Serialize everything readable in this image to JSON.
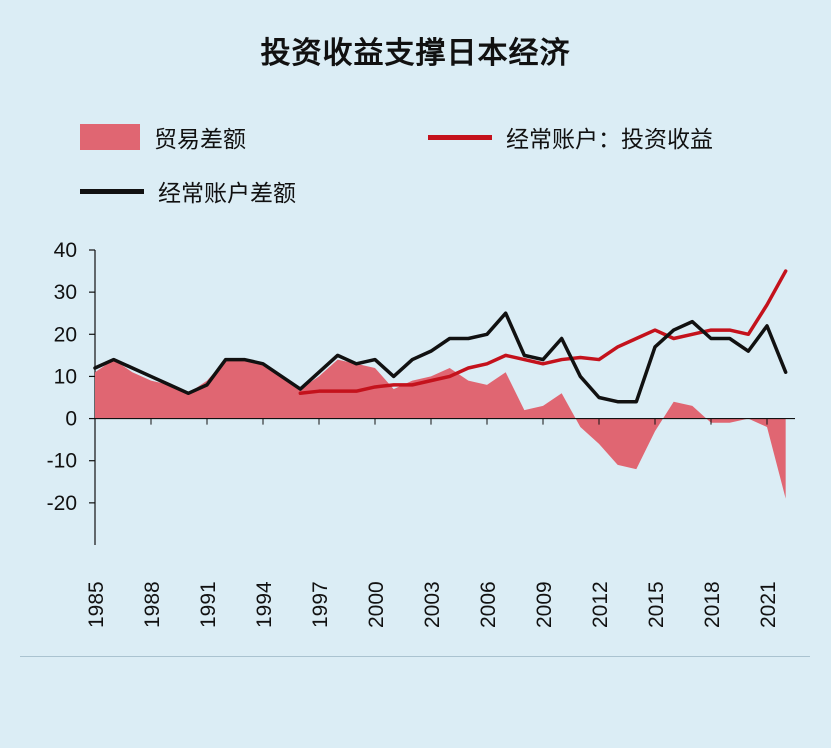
{
  "chart_data": {
    "type": "area",
    "title": "投资收益支撑日本经济",
    "xlabel": "",
    "ylabel": "",
    "ylim": [
      -30,
      40
    ],
    "yticks": [
      40,
      30,
      20,
      10,
      0,
      -10,
      -20
    ],
    "xtick_labels": [
      "1985",
      "1988",
      "1991",
      "1994",
      "1997",
      "2000",
      "2003",
      "2006",
      "2009",
      "2012",
      "2015",
      "2018",
      "2021"
    ],
    "grid": false,
    "legend": "top",
    "series": [
      {
        "name": "贸易差额",
        "kind": "area",
        "color": "#e06672",
        "x": [
          1985,
          1986,
          1987,
          1988,
          1989,
          1990,
          1991,
          1992,
          1993,
          1994,
          1995,
          1996,
          1997,
          1998,
          1999,
          2000,
          2001,
          2002,
          2003,
          2004,
          2005,
          2006,
          2007,
          2008,
          2009,
          2010,
          2011,
          2012,
          2013,
          2014,
          2015,
          2016,
          2017,
          2018,
          2019,
          2020,
          2021,
          2022
        ],
        "values": [
          11,
          14,
          11,
          9,
          8,
          6,
          9,
          14,
          14,
          13,
          10,
          7,
          10,
          14,
          13,
          12,
          7,
          9,
          10,
          12,
          9,
          8,
          11,
          2,
          3,
          6,
          -2,
          -6,
          -11,
          -12,
          -3,
          4,
          3,
          -1,
          -1,
          0,
          -2,
          -19
        ]
      },
      {
        "name": "经常账户：投资收益",
        "kind": "line",
        "color": "#c4121c",
        "x": [
          1996,
          1997,
          1998,
          1999,
          2000,
          2001,
          2002,
          2003,
          2004,
          2005,
          2006,
          2007,
          2008,
          2009,
          2010,
          2011,
          2012,
          2013,
          2014,
          2015,
          2016,
          2017,
          2018,
          2019,
          2020,
          2021,
          2022
        ],
        "values": [
          6,
          6.5,
          6.5,
          6.5,
          7.5,
          8,
          8,
          9,
          10,
          12,
          13,
          15,
          14,
          13,
          14,
          14.5,
          14,
          17,
          19,
          21,
          19,
          20,
          21,
          21,
          20,
          27,
          35
        ]
      },
      {
        "name": "经常账户差额",
        "kind": "line",
        "color": "#111111",
        "x": [
          1985,
          1986,
          1987,
          1988,
          1989,
          1990,
          1991,
          1992,
          1993,
          1994,
          1995,
          1996,
          1997,
          1998,
          1999,
          2000,
          2001,
          2002,
          2003,
          2004,
          2005,
          2006,
          2007,
          2008,
          2009,
          2010,
          2011,
          2012,
          2013,
          2014,
          2015,
          2016,
          2017,
          2018,
          2019,
          2020,
          2021,
          2022
        ],
        "values": [
          12,
          14,
          12,
          10,
          8,
          6,
          8,
          14,
          14,
          13,
          10,
          7,
          11,
          15,
          13,
          14,
          10,
          14,
          16,
          19,
          19,
          20,
          25,
          15,
          14,
          19,
          10,
          5,
          4,
          4,
          17,
          21,
          23,
          19,
          19,
          16,
          22,
          11
        ]
      }
    ]
  }
}
